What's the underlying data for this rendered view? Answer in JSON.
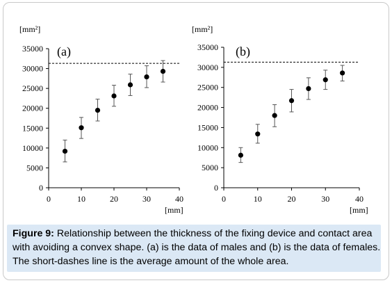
{
  "figure": {
    "caption_label": "Figure 9:",
    "caption_text": " Relationship between the thickness of the fixing device and contact area with avoiding a convex shape. (a) is the data of males and (b) is the data of females. The short-dashes line is the average amount of the whole area.",
    "y_unit": "[mm²]",
    "x_unit": "[mm]"
  },
  "chart_data": [
    {
      "type": "scatter",
      "panel": "(a)",
      "x": [
        5,
        10,
        15,
        20,
        25,
        30,
        35
      ],
      "y": [
        9200,
        15100,
        19500,
        23100,
        25900,
        27900,
        29300
      ],
      "err_low": [
        6500,
        12400,
        16800,
        20500,
        23200,
        25200,
        26600
      ],
      "err_high": [
        12000,
        17700,
        22300,
        25800,
        28600,
        30700,
        32000
      ],
      "reference_line": 31300,
      "xlim": [
        0,
        40
      ],
      "ylim": [
        0,
        35000
      ],
      "xticks": [
        0,
        10,
        20,
        30,
        40
      ],
      "yticks": [
        0,
        5000,
        10000,
        15000,
        20000,
        25000,
        30000,
        35000
      ],
      "xlabel": "[mm]",
      "ylabel": "[mm²]"
    },
    {
      "type": "scatter",
      "panel": "(b)",
      "x": [
        5,
        10,
        15,
        20,
        25,
        30,
        35
      ],
      "y": [
        8100,
        13400,
        18000,
        21700,
        24700,
        26900,
        28600
      ],
      "err_low": [
        6300,
        11100,
        15200,
        18900,
        22000,
        24500,
        26600
      ],
      "err_high": [
        10000,
        15800,
        20700,
        24500,
        27400,
        29300,
        30500
      ],
      "reference_line": 31300,
      "xlim": [
        0,
        40
      ],
      "ylim": [
        0,
        35000
      ],
      "xticks": [
        0,
        10,
        20,
        30,
        40
      ],
      "yticks": [
        0,
        5000,
        10000,
        15000,
        20000,
        25000,
        30000,
        35000
      ],
      "xlabel": "[mm]",
      "ylabel": "[mm²]"
    }
  ]
}
